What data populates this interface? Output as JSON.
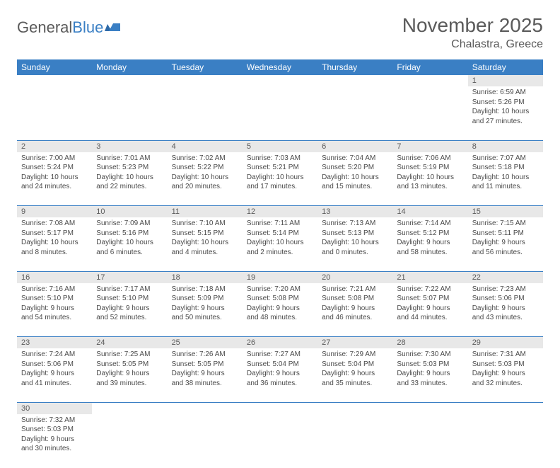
{
  "brand": {
    "part1": "General",
    "part2": "Blue"
  },
  "title": "November 2025",
  "location": "Chalastra, Greece",
  "colors": {
    "header_bg": "#3a7fc4",
    "header_text": "#ffffff",
    "daynum_bg": "#e8e8e8",
    "text": "#4a4a4a",
    "title_text": "#5a5a5a",
    "row_border": "#3a7fc4"
  },
  "day_headers": [
    "Sunday",
    "Monday",
    "Tuesday",
    "Wednesday",
    "Thursday",
    "Friday",
    "Saturday"
  ],
  "weeks": [
    [
      null,
      null,
      null,
      null,
      null,
      null,
      {
        "n": "1",
        "sr": "Sunrise: 6:59 AM",
        "ss": "Sunset: 5:26 PM",
        "d1": "Daylight: 10 hours",
        "d2": "and 27 minutes."
      }
    ],
    [
      {
        "n": "2",
        "sr": "Sunrise: 7:00 AM",
        "ss": "Sunset: 5:24 PM",
        "d1": "Daylight: 10 hours",
        "d2": "and 24 minutes."
      },
      {
        "n": "3",
        "sr": "Sunrise: 7:01 AM",
        "ss": "Sunset: 5:23 PM",
        "d1": "Daylight: 10 hours",
        "d2": "and 22 minutes."
      },
      {
        "n": "4",
        "sr": "Sunrise: 7:02 AM",
        "ss": "Sunset: 5:22 PM",
        "d1": "Daylight: 10 hours",
        "d2": "and 20 minutes."
      },
      {
        "n": "5",
        "sr": "Sunrise: 7:03 AM",
        "ss": "Sunset: 5:21 PM",
        "d1": "Daylight: 10 hours",
        "d2": "and 17 minutes."
      },
      {
        "n": "6",
        "sr": "Sunrise: 7:04 AM",
        "ss": "Sunset: 5:20 PM",
        "d1": "Daylight: 10 hours",
        "d2": "and 15 minutes."
      },
      {
        "n": "7",
        "sr": "Sunrise: 7:06 AM",
        "ss": "Sunset: 5:19 PM",
        "d1": "Daylight: 10 hours",
        "d2": "and 13 minutes."
      },
      {
        "n": "8",
        "sr": "Sunrise: 7:07 AM",
        "ss": "Sunset: 5:18 PM",
        "d1": "Daylight: 10 hours",
        "d2": "and 11 minutes."
      }
    ],
    [
      {
        "n": "9",
        "sr": "Sunrise: 7:08 AM",
        "ss": "Sunset: 5:17 PM",
        "d1": "Daylight: 10 hours",
        "d2": "and 8 minutes."
      },
      {
        "n": "10",
        "sr": "Sunrise: 7:09 AM",
        "ss": "Sunset: 5:16 PM",
        "d1": "Daylight: 10 hours",
        "d2": "and 6 minutes."
      },
      {
        "n": "11",
        "sr": "Sunrise: 7:10 AM",
        "ss": "Sunset: 5:15 PM",
        "d1": "Daylight: 10 hours",
        "d2": "and 4 minutes."
      },
      {
        "n": "12",
        "sr": "Sunrise: 7:11 AM",
        "ss": "Sunset: 5:14 PM",
        "d1": "Daylight: 10 hours",
        "d2": "and 2 minutes."
      },
      {
        "n": "13",
        "sr": "Sunrise: 7:13 AM",
        "ss": "Sunset: 5:13 PM",
        "d1": "Daylight: 10 hours",
        "d2": "and 0 minutes."
      },
      {
        "n": "14",
        "sr": "Sunrise: 7:14 AM",
        "ss": "Sunset: 5:12 PM",
        "d1": "Daylight: 9 hours",
        "d2": "and 58 minutes."
      },
      {
        "n": "15",
        "sr": "Sunrise: 7:15 AM",
        "ss": "Sunset: 5:11 PM",
        "d1": "Daylight: 9 hours",
        "d2": "and 56 minutes."
      }
    ],
    [
      {
        "n": "16",
        "sr": "Sunrise: 7:16 AM",
        "ss": "Sunset: 5:10 PM",
        "d1": "Daylight: 9 hours",
        "d2": "and 54 minutes."
      },
      {
        "n": "17",
        "sr": "Sunrise: 7:17 AM",
        "ss": "Sunset: 5:10 PM",
        "d1": "Daylight: 9 hours",
        "d2": "and 52 minutes."
      },
      {
        "n": "18",
        "sr": "Sunrise: 7:18 AM",
        "ss": "Sunset: 5:09 PM",
        "d1": "Daylight: 9 hours",
        "d2": "and 50 minutes."
      },
      {
        "n": "19",
        "sr": "Sunrise: 7:20 AM",
        "ss": "Sunset: 5:08 PM",
        "d1": "Daylight: 9 hours",
        "d2": "and 48 minutes."
      },
      {
        "n": "20",
        "sr": "Sunrise: 7:21 AM",
        "ss": "Sunset: 5:08 PM",
        "d1": "Daylight: 9 hours",
        "d2": "and 46 minutes."
      },
      {
        "n": "21",
        "sr": "Sunrise: 7:22 AM",
        "ss": "Sunset: 5:07 PM",
        "d1": "Daylight: 9 hours",
        "d2": "and 44 minutes."
      },
      {
        "n": "22",
        "sr": "Sunrise: 7:23 AM",
        "ss": "Sunset: 5:06 PM",
        "d1": "Daylight: 9 hours",
        "d2": "and 43 minutes."
      }
    ],
    [
      {
        "n": "23",
        "sr": "Sunrise: 7:24 AM",
        "ss": "Sunset: 5:06 PM",
        "d1": "Daylight: 9 hours",
        "d2": "and 41 minutes."
      },
      {
        "n": "24",
        "sr": "Sunrise: 7:25 AM",
        "ss": "Sunset: 5:05 PM",
        "d1": "Daylight: 9 hours",
        "d2": "and 39 minutes."
      },
      {
        "n": "25",
        "sr": "Sunrise: 7:26 AM",
        "ss": "Sunset: 5:05 PM",
        "d1": "Daylight: 9 hours",
        "d2": "and 38 minutes."
      },
      {
        "n": "26",
        "sr": "Sunrise: 7:27 AM",
        "ss": "Sunset: 5:04 PM",
        "d1": "Daylight: 9 hours",
        "d2": "and 36 minutes."
      },
      {
        "n": "27",
        "sr": "Sunrise: 7:29 AM",
        "ss": "Sunset: 5:04 PM",
        "d1": "Daylight: 9 hours",
        "d2": "and 35 minutes."
      },
      {
        "n": "28",
        "sr": "Sunrise: 7:30 AM",
        "ss": "Sunset: 5:03 PM",
        "d1": "Daylight: 9 hours",
        "d2": "and 33 minutes."
      },
      {
        "n": "29",
        "sr": "Sunrise: 7:31 AM",
        "ss": "Sunset: 5:03 PM",
        "d1": "Daylight: 9 hours",
        "d2": "and 32 minutes."
      }
    ],
    [
      {
        "n": "30",
        "sr": "Sunrise: 7:32 AM",
        "ss": "Sunset: 5:03 PM",
        "d1": "Daylight: 9 hours",
        "d2": "and 30 minutes."
      },
      null,
      null,
      null,
      null,
      null,
      null
    ]
  ]
}
